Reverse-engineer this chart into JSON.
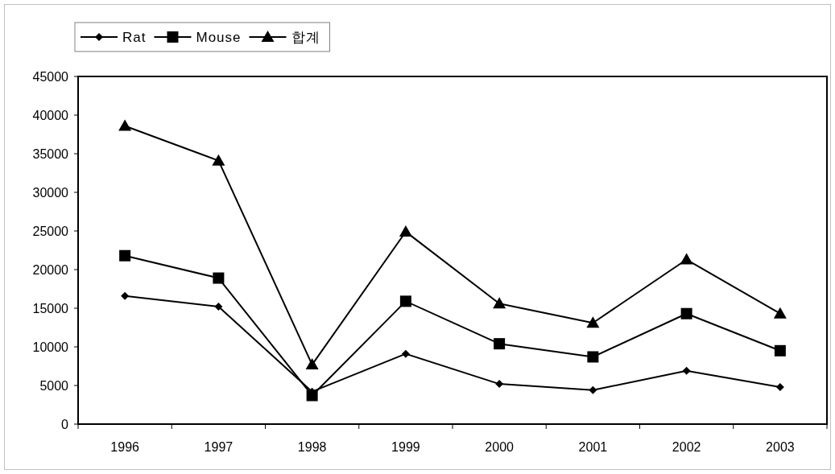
{
  "chart_data": {
    "type": "line",
    "categories": [
      "1996",
      "1997",
      "1998",
      "1999",
      "2000",
      "2001",
      "2002",
      "2003"
    ],
    "series": [
      {
        "name": "Rat",
        "color": "#000000",
        "marker": "diamond",
        "values": [
          16600,
          15200,
          4200,
          9100,
          5200,
          4400,
          6900,
          4800
        ]
      },
      {
        "name": "Mouse",
        "color": "#000000",
        "marker": "square",
        "values": [
          21800,
          18900,
          3700,
          15900,
          10400,
          8700,
          14300,
          9500
        ]
      },
      {
        "name": "합계",
        "color": "#000000",
        "marker": "triangle",
        "values": [
          38600,
          34100,
          7700,
          24900,
          15600,
          13100,
          21300,
          14300
        ]
      }
    ],
    "ylim": [
      0,
      45000
    ],
    "yticks": [
      0,
      5000,
      10000,
      15000,
      20000,
      25000,
      30000,
      35000,
      40000,
      45000
    ],
    "legend": "top left",
    "line_style": "solid"
  }
}
